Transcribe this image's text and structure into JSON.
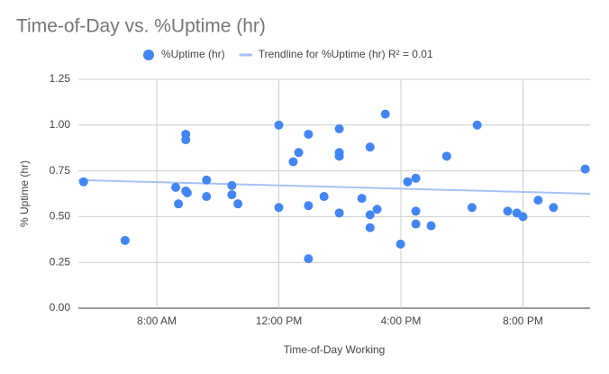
{
  "chart_data": {
    "type": "scatter",
    "title": "Time-of-Day vs. %Uptime (hr)",
    "x_label": "Time-of-Day Working",
    "y_label": "% Uptime (hr)",
    "series": [
      {
        "name": "%Uptime (hr)",
        "color": "#4285f4",
        "type": "scatter",
        "x": [
          5.6,
          6.96,
          8.62,
          8.71,
          8.95,
          8.95,
          8.95,
          9.0,
          9.63,
          9.63,
          10.46,
          10.46,
          10.66,
          12.0,
          12.0,
          12.47,
          12.65,
          12.97,
          12.97,
          12.97,
          13.48,
          13.98,
          13.98,
          13.98,
          13.98,
          14.72,
          14.99,
          14.99,
          14.99,
          15.22,
          15.49,
          15.99,
          16.22,
          16.49,
          16.49,
          16.49,
          16.99,
          17.5,
          18.33,
          18.5,
          19.5,
          19.8,
          20.0,
          20.5,
          21.0,
          22.04
        ],
        "values": [
          0.69,
          0.37,
          0.66,
          0.57,
          0.95,
          0.92,
          0.64,
          0.63,
          0.7,
          0.61,
          0.67,
          0.62,
          0.57,
          1.0,
          0.55,
          0.8,
          0.85,
          0.95,
          0.56,
          0.27,
          0.61,
          0.98,
          0.85,
          0.83,
          0.52,
          0.6,
          0.88,
          0.51,
          0.44,
          0.54,
          1.06,
          0.35,
          0.69,
          0.71,
          0.53,
          0.46,
          0.45,
          0.83,
          0.55,
          1.0,
          0.53,
          0.52,
          0.5,
          0.59,
          0.55,
          0.76
        ]
      },
      {
        "name": "Trendline for %Uptime (hr) R² = 0.01",
        "color": "#a4c2f4",
        "type": "line",
        "x": [
          5.43,
          22.2
        ],
        "values": [
          0.7,
          0.625
        ]
      }
    ],
    "xlim": [
      5.43,
      22.2
    ],
    "xticks": [
      {
        "value": 8,
        "label": "8:00 AM"
      },
      {
        "value": 12,
        "label": "12:00 PM"
      },
      {
        "value": 16,
        "label": "4:00 PM"
      },
      {
        "value": 20,
        "label": "8:00 PM"
      }
    ],
    "ylim": [
      0,
      1.25
    ],
    "yticks": [
      {
        "value": 0,
        "label": "0.00"
      },
      {
        "value": 0.25,
        "label": "0.25"
      },
      {
        "value": 0.5,
        "label": "0.50"
      },
      {
        "value": 0.75,
        "label": "0.75"
      },
      {
        "value": 1,
        "label": "1.00"
      },
      {
        "value": 1.25,
        "label": "1.25"
      }
    ],
    "grid": true,
    "legend": "top"
  }
}
